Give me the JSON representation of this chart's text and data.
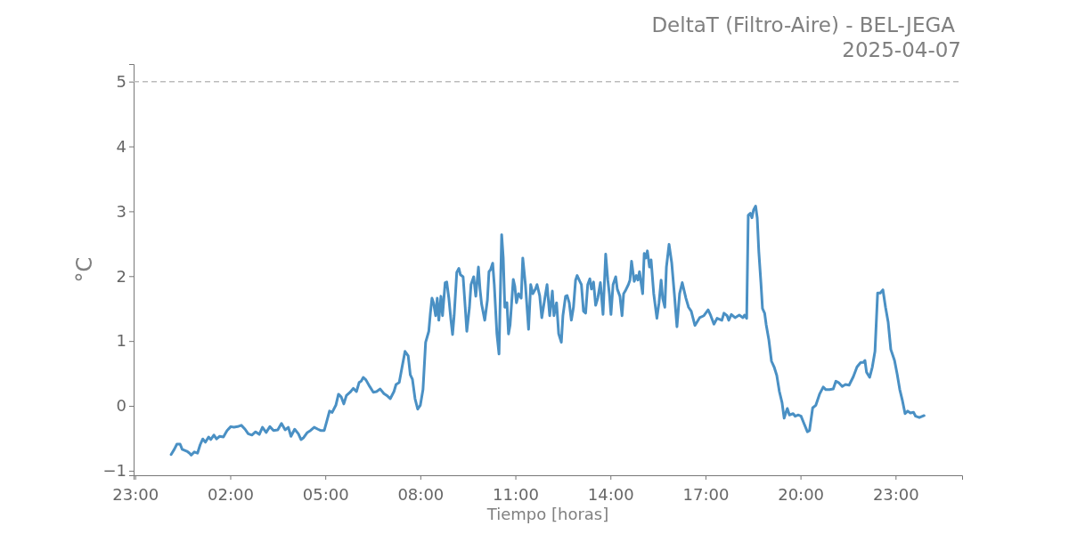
{
  "chart_data": {
    "type": "line",
    "title": "DeltaT (Filtro-Aire) - BEL-JEGA",
    "subtitle": "2025-04-07",
    "xlabel": "Tiempo [horas]",
    "ylabel": "°C",
    "xlim": [
      "2025-04-06T22:57",
      "2025-04-08T01:06"
    ],
    "xticks": [
      {
        "value": "2025-04-06T23:00",
        "label": "23:00"
      },
      {
        "value": "2025-04-07T02:00",
        "label": "02:00"
      },
      {
        "value": "2025-04-07T05:00",
        "label": "05:00"
      },
      {
        "value": "2025-04-07T08:00",
        "label": "08:00"
      },
      {
        "value": "2025-04-07T11:00",
        "label": "11:00"
      },
      {
        "value": "2025-04-07T14:00",
        "label": "14:00"
      },
      {
        "value": "2025-04-07T17:00",
        "label": "17:00"
      },
      {
        "value": "2025-04-07T20:00",
        "label": "20:00"
      },
      {
        "value": "2025-04-07T23:00",
        "label": "23:00"
      }
    ],
    "ylim": [
      -1.07,
      5.27
    ],
    "yticks": [
      {
        "value": -1,
        "label": "−1"
      },
      0,
      1,
      2,
      3,
      4,
      5
    ],
    "grid": false,
    "line_style": "solid",
    "ref_lines": [
      {
        "axis": "y",
        "value": 5,
        "color": "#bbbbbb",
        "line_style": "dashed"
      }
    ],
    "x": [
      "2025-04-07T00:08",
      "2025-04-07T00:14",
      "2025-04-07T00:19",
      "2025-04-07T00:25",
      "2025-04-07T00:29",
      "2025-04-07T00:38",
      "2025-04-07T00:43",
      "2025-04-07T00:46",
      "2025-04-07T00:52",
      "2025-04-07T00:58",
      "2025-04-07T01:03",
      "2025-04-07T01:08",
      "2025-04-07T01:13",
      "2025-04-07T01:19",
      "2025-04-07T01:23",
      "2025-04-07T01:29",
      "2025-04-07T01:34",
      "2025-04-07T01:40",
      "2025-04-07T01:47",
      "2025-04-07T01:54",
      "2025-04-07T02:01",
      "2025-04-07T02:07",
      "2025-04-07T02:14",
      "2025-04-07T02:21",
      "2025-04-07T02:28",
      "2025-04-07T02:34",
      "2025-04-07T02:41",
      "2025-04-07T02:48",
      "2025-04-07T02:55",
      "2025-04-07T03:01",
      "2025-04-07T03:08",
      "2025-04-07T03:15",
      "2025-04-07T03:22",
      "2025-04-07T03:30",
      "2025-04-07T03:37",
      "2025-04-07T03:44",
      "2025-04-07T03:50",
      "2025-04-07T03:55",
      "2025-04-07T04:02",
      "2025-04-07T04:09",
      "2025-04-07T04:14",
      "2025-04-07T04:19",
      "2025-04-07T04:26",
      "2025-04-07T04:32",
      "2025-04-07T04:39",
      "2025-04-07T04:46",
      "2025-04-07T04:51",
      "2025-04-07T04:58",
      "2025-04-07T05:03",
      "2025-04-07T05:08",
      "2025-04-07T05:13",
      "2025-04-07T05:20",
      "2025-04-07T05:25",
      "2025-04-07T05:30",
      "2025-04-07T05:35",
      "2025-04-07T05:40",
      "2025-04-07T05:47",
      "2025-04-07T05:53",
      "2025-04-07T05:59",
      "2025-04-07T06:04",
      "2025-04-07T06:08",
      "2025-04-07T06:12",
      "2025-04-07T06:17",
      "2025-04-07T06:24",
      "2025-04-07T06:31",
      "2025-04-07T06:37",
      "2025-04-07T06:44",
      "2025-04-07T06:51",
      "2025-04-07T06:58",
      "2025-04-07T07:03",
      "2025-04-07T07:10",
      "2025-04-07T07:14",
      "2025-04-07T07:20",
      "2025-04-07T07:25",
      "2025-04-07T07:31",
      "2025-04-07T07:37",
      "2025-04-07T07:41",
      "2025-04-07T07:45",
      "2025-04-07T07:50",
      "2025-04-07T07:55",
      "2025-04-07T08:00",
      "2025-04-07T08:05",
      "2025-04-07T08:10",
      "2025-04-07T08:16",
      "2025-04-07T08:19",
      "2025-04-07T08:22",
      "2025-04-07T08:25",
      "2025-04-07T08:29",
      "2025-04-07T08:32",
      "2025-04-07T08:35",
      "2025-04-07T08:39",
      "2025-04-07T08:42",
      "2025-04-07T08:47",
      "2025-04-07T08:50",
      "2025-04-07T08:54",
      "2025-04-07T08:58",
      "2025-04-07T09:01",
      "2025-04-07T09:04",
      "2025-04-07T09:09",
      "2025-04-07T09:13",
      "2025-04-07T09:16",
      "2025-04-07T09:21",
      "2025-04-07T09:25",
      "2025-04-07T09:28",
      "2025-04-07T09:33",
      "2025-04-07T09:36",
      "2025-04-07T09:41",
      "2025-04-07T09:45",
      "2025-04-07T09:50",
      "2025-04-07T09:53",
      "2025-04-07T09:56",
      "2025-04-07T10:02",
      "2025-04-07T10:07",
      "2025-04-07T10:10",
      "2025-04-07T10:13",
      "2025-04-07T10:17",
      "2025-04-07T10:20",
      "2025-04-07T10:25",
      "2025-04-07T10:29",
      "2025-04-07T10:34",
      "2025-04-07T10:37",
      "2025-04-07T10:40",
      "2025-04-07T10:44",
      "2025-04-07T10:47",
      "2025-04-07T10:50",
      "2025-04-07T10:56",
      "2025-04-07T10:59",
      "2025-04-07T11:02",
      "2025-04-07T11:06",
      "2025-04-07T11:11",
      "2025-04-07T11:14",
      "2025-04-07T11:19",
      "2025-04-07T11:25",
      "2025-04-07T11:29",
      "2025-04-07T11:33",
      "2025-04-07T11:38",
      "2025-04-07T11:41",
      "2025-04-07T11:46",
      "2025-04-07T11:50",
      "2025-04-07T11:55",
      "2025-04-07T12:00",
      "2025-04-07T12:05",
      "2025-04-07T12:10",
      "2025-04-07T12:13",
      "2025-04-07T12:18",
      "2025-04-07T12:22",
      "2025-04-07T12:27",
      "2025-04-07T12:30",
      "2025-04-07T12:35",
      "2025-04-07T12:38",
      "2025-04-07T12:42",
      "2025-04-07T12:46",
      "2025-04-07T12:50",
      "2025-04-07T12:54",
      "2025-04-07T12:57",
      "2025-04-07T13:02",
      "2025-04-07T13:05",
      "2025-04-07T13:09",
      "2025-04-07T13:13",
      "2025-04-07T13:17",
      "2025-04-07T13:21",
      "2025-04-07T13:24",
      "2025-04-07T13:28",
      "2025-04-07T13:32",
      "2025-04-07T13:36",
      "2025-04-07T13:41",
      "2025-04-07T13:46",
      "2025-04-07T13:51",
      "2025-04-07T13:55",
      "2025-04-07T13:58",
      "2025-04-07T14:01",
      "2025-04-07T14:05",
      "2025-04-07T14:10",
      "2025-04-07T14:13",
      "2025-04-07T14:18",
      "2025-04-07T14:22",
      "2025-04-07T14:25",
      "2025-04-07T14:28",
      "2025-04-07T14:34",
      "2025-04-07T14:37",
      "2025-04-07T14:40",
      "2025-04-07T14:45",
      "2025-04-07T14:49",
      "2025-04-07T14:52",
      "2025-04-07T14:55",
      "2025-04-07T15:01",
      "2025-04-07T15:04",
      "2025-04-07T15:07",
      "2025-04-07T15:10",
      "2025-04-07T15:14",
      "2025-04-07T15:17",
      "2025-04-07T15:22",
      "2025-04-07T15:28",
      "2025-04-07T15:32",
      "2025-04-07T15:36",
      "2025-04-07T15:39",
      "2025-04-07T15:43",
      "2025-04-07T15:46",
      "2025-04-07T15:51",
      "2025-04-07T15:56",
      "2025-04-07T16:01",
      "2025-04-07T16:06",
      "2025-04-07T16:11",
      "2025-04-07T16:16",
      "2025-04-07T16:23",
      "2025-04-07T16:28",
      "2025-04-07T16:33",
      "2025-04-07T16:40",
      "2025-04-07T16:49",
      "2025-04-07T16:57",
      "2025-04-07T17:05",
      "2025-04-07T17:10",
      "2025-04-07T17:16",
      "2025-04-07T17:22",
      "2025-04-07T17:31",
      "2025-04-07T17:35",
      "2025-04-07T17:41",
      "2025-04-07T17:44",
      "2025-04-07T17:49",
      "2025-04-07T17:56",
      "2025-04-07T18:04",
      "2025-04-07T18:11",
      "2025-04-07T18:14",
      "2025-04-07T18:18",
      "2025-04-07T18:21",
      "2025-04-07T18:25",
      "2025-04-07T18:28",
      "2025-04-07T18:31",
      "2025-04-07T18:35",
      "2025-04-07T18:38",
      "2025-04-07T18:41",
      "2025-04-07T18:45",
      "2025-04-07T18:48",
      "2025-04-07T18:52",
      "2025-04-07T18:55",
      "2025-04-07T19:00",
      "2025-04-07T19:05",
      "2025-04-07T19:10",
      "2025-04-07T19:15",
      "2025-04-07T19:20",
      "2025-04-07T19:25",
      "2025-04-07T19:29",
      "2025-04-07T19:32",
      "2025-04-07T19:35",
      "2025-04-07T19:39",
      "2025-04-07T19:46",
      "2025-04-07T19:50",
      "2025-04-07T19:56",
      "2025-04-07T20:01",
      "2025-04-07T20:06",
      "2025-04-07T20:13",
      "2025-04-07T20:17",
      "2025-04-07T20:23",
      "2025-04-07T20:29",
      "2025-04-07T20:36",
      "2025-04-07T20:43",
      "2025-04-07T20:48",
      "2025-04-07T20:55",
      "2025-04-07T21:02",
      "2025-04-07T21:07",
      "2025-04-07T21:12",
      "2025-04-07T21:19",
      "2025-04-07T21:25",
      "2025-04-07T21:32",
      "2025-04-07T21:40",
      "2025-04-07T21:47",
      "2025-04-07T21:54",
      "2025-04-07T21:59",
      "2025-04-07T22:02",
      "2025-04-07T22:05",
      "2025-04-07T22:11",
      "2025-04-07T22:16",
      "2025-04-07T22:21",
      "2025-04-07T22:26",
      "2025-04-07T22:31",
      "2025-04-07T22:36",
      "2025-04-07T22:41",
      "2025-04-07T22:46",
      "2025-04-07T22:51",
      "2025-04-07T22:58",
      "2025-04-07T23:03",
      "2025-04-07T23:08",
      "2025-04-07T23:13",
      "2025-04-07T23:18",
      "2025-04-07T23:23",
      "2025-04-07T23:28",
      "2025-04-07T23:34",
      "2025-04-07T23:38",
      "2025-04-07T23:45",
      "2025-04-07T23:54"
    ],
    "series": [
      {
        "color": "#4a90c4",
        "values": [
          -0.75,
          -0.67,
          -0.59,
          -0.59,
          -0.67,
          -0.7,
          -0.73,
          -0.76,
          -0.71,
          -0.73,
          -0.6,
          -0.51,
          -0.56,
          -0.48,
          -0.52,
          -0.45,
          -0.51,
          -0.47,
          -0.48,
          -0.38,
          -0.32,
          -0.33,
          -0.32,
          -0.3,
          -0.36,
          -0.43,
          -0.45,
          -0.4,
          -0.44,
          -0.33,
          -0.41,
          -0.32,
          -0.38,
          -0.37,
          -0.27,
          -0.37,
          -0.33,
          -0.47,
          -0.36,
          -0.43,
          -0.52,
          -0.49,
          -0.41,
          -0.38,
          -0.33,
          -0.36,
          -0.38,
          -0.38,
          -0.23,
          -0.08,
          -0.1,
          0.01,
          0.18,
          0.14,
          0.03,
          0.16,
          0.21,
          0.27,
          0.22,
          0.36,
          0.38,
          0.44,
          0.4,
          0.3,
          0.21,
          0.22,
          0.26,
          0.19,
          0.15,
          0.11,
          0.22,
          0.33,
          0.36,
          0.58,
          0.84,
          0.77,
          0.48,
          0.41,
          0.11,
          -0.05,
          0.01,
          0.25,
          0.98,
          1.15,
          1.43,
          1.66,
          1.59,
          1.39,
          1.66,
          1.32,
          1.69,
          1.39,
          1.9,
          1.91,
          1.66,
          1.32,
          1.1,
          1.39,
          2.06,
          2.12,
          2.02,
          1.99,
          1.52,
          1.15,
          1.52,
          1.87,
          1.99,
          1.69,
          2.14,
          1.8,
          1.57,
          1.32,
          1.63,
          2.07,
          2.1,
          2.2,
          1.87,
          1.11,
          0.8,
          2.64,
          2.28,
          1.52,
          1.59,
          1.11,
          1.25,
          1.95,
          1.84,
          1.59,
          1.73,
          1.66,
          2.28,
          1.87,
          1.18,
          1.87,
          1.73,
          1.8,
          1.87,
          1.7,
          1.36,
          1.62,
          1.87,
          1.39,
          1.77,
          1.39,
          1.59,
          1.11,
          0.98,
          1.39,
          1.69,
          1.7,
          1.59,
          1.32,
          1.52,
          1.94,
          2.01,
          1.92,
          1.87,
          1.46,
          1.43,
          1.87,
          1.96,
          1.8,
          1.91,
          1.55,
          1.66,
          1.9,
          1.41,
          2.34,
          1.94,
          1.73,
          1.41,
          1.87,
          1.99,
          1.8,
          1.69,
          1.39,
          1.73,
          1.77,
          1.87,
          1.94,
          2.23,
          1.92,
          2.01,
          1.94,
          2.07,
          1.73,
          2.35,
          2.28,
          2.39,
          2.14,
          2.25,
          1.73,
          1.35,
          1.59,
          1.94,
          1.66,
          1.52,
          2.14,
          2.49,
          2.21,
          1.73,
          1.22,
          1.73,
          1.9,
          1.66,
          1.52,
          1.46,
          1.24,
          1.36,
          1.39,
          1.48,
          1.39,
          1.26,
          1.35,
          1.32,
          1.43,
          1.39,
          1.32,
          1.41,
          1.36,
          1.4,
          1.36,
          1.4,
          1.35,
          2.94,
          2.97,
          2.9,
          3.02,
          3.08,
          2.9,
          2.38,
          1.9,
          1.5,
          1.43,
          1.25,
          1.02,
          0.69,
          0.6,
          0.47,
          0.22,
          0.05,
          -0.19,
          -0.11,
          -0.04,
          -0.14,
          -0.12,
          -0.16,
          -0.14,
          -0.16,
          -0.26,
          -0.4,
          -0.38,
          -0.03,
          0.01,
          0.18,
          0.29,
          0.25,
          0.25,
          0.26,
          0.38,
          0.36,
          0.3,
          0.33,
          0.32,
          0.45,
          0.6,
          0.67,
          0.67,
          0.7,
          0.52,
          0.44,
          0.6,
          0.84,
          1.74,
          1.74,
          1.79,
          1.52,
          1.29,
          0.87,
          0.7,
          0.49,
          0.25,
          0.08,
          -0.12,
          -0.08,
          -0.11,
          -0.1,
          -0.16,
          -0.18,
          -0.15
        ]
      }
    ]
  }
}
